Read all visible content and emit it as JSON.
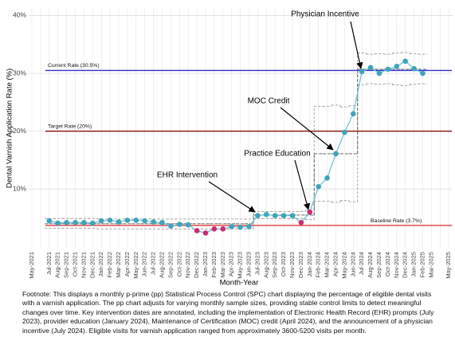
{
  "chart_data": {
    "type": "line",
    "y_axis_label": "Dental Varnish Application Rate (%)",
    "x_axis_label": "Month-Year",
    "categories": [
      "May-2021",
      null,
      "Jul-2021",
      "Aug-2021",
      "Sep-2021",
      "Oct-2021",
      "Nov-2021",
      "Dec-2021",
      "Jan-2022",
      "Feb-2022",
      "Mar-2022",
      "Apr-2022",
      "May-2022",
      "Jun-2022",
      "Jul-2022",
      "Aug-2022",
      "Sep-2022",
      "Oct-2022",
      "Nov-2022",
      "Dec-2022",
      "Jan-2023",
      "Feb-2023",
      "Mar-2023",
      "Apr-2023",
      "May-2023",
      "Jun-2023",
      "Jul-2023",
      "Aug-2023",
      "Sep-2023",
      "Oct-2023",
      "Nov-2023",
      "Dec-2023",
      "Jan-2024",
      "Feb-2024",
      "Mar-2024",
      "Apr-2024",
      "May-2024",
      "Jun-2024",
      "Jul-2024",
      "Aug-2024",
      "Sep-2024",
      "Oct-2024",
      "Nov-2024",
      "Dec-2024",
      "Jan-2025",
      "Feb-2025",
      "Mar-2025",
      null,
      "May-2025"
    ],
    "series": [
      {
        "color": "#3fa3bb",
        "line_color": "#6cc3d3",
        "point_colors": [
          null,
          null,
          "#3fa3bb",
          "#3fa3bb",
          "#3fa3bb",
          "#3fa3bb",
          "#3fa3bb",
          "#3fa3bb",
          "#3fa3bb",
          "#3fa3bb",
          "#3fa3bb",
          "#3fa3bb",
          "#3fa3bb",
          "#3fa3bb",
          "#3fa3bb",
          "#3fa3bb",
          "#3fa3bb",
          "#3fa3bb",
          "#3fa3bb",
          "#cc2b73",
          "#cc2b73",
          "#cc2b73",
          "#cc2b73",
          "#3fa3bb",
          "#3fa3bb",
          "#3fa3bb",
          "#3fa3bb",
          "#3fa3bb",
          "#3fa3bb",
          "#3fa3bb",
          "#3fa3bb",
          "#cc2b73",
          "#cc2b73",
          "#3fa3bb",
          "#3fa3bb",
          "#3fa3bb",
          "#3fa3bb",
          "#3fa3bb",
          "#3fa3bb",
          "#3fa3bb",
          "#3fa3bb",
          "#3fa3bb",
          "#3fa3bb",
          "#3fa3bb",
          "#3fa3bb",
          "#3fa3bb",
          null,
          null,
          null
        ],
        "values": [
          null,
          null,
          4.5,
          4.1,
          4.2,
          4.2,
          4.2,
          4.1,
          4.5,
          4.6,
          4.3,
          4.6,
          4.6,
          4.5,
          4.3,
          4.2,
          3.6,
          3.9,
          3.8,
          2.8,
          2.4,
          3.1,
          3.1,
          3.5,
          3.4,
          3.5,
          5.4,
          5.6,
          5.4,
          5.4,
          5.4,
          4.2,
          6.0,
          10.4,
          11.9,
          16.1,
          19.8,
          23.0,
          30.3,
          31.0,
          30.0,
          30.7,
          31.2,
          32.1,
          30.8,
          30.0,
          null,
          null,
          null
        ],
        "ucl": [
          null,
          null,
          4.9,
          4.9,
          4.9,
          4.9,
          4.9,
          4.9,
          4.8,
          4.8,
          4.8,
          4.8,
          4.8,
          4.8,
          4.8,
          4.8,
          4.8,
          4.8,
          4.8,
          4.8,
          4.8,
          4.8,
          4.8,
          4.8,
          4.8,
          4.8,
          6.1,
          6.1,
          6.1,
          6.1,
          6.1,
          6.1,
          6.3,
          24.3,
          24.3,
          24.5,
          24.2,
          24.4,
          33.5,
          33.3,
          33.4,
          33.3,
          33.5,
          33.6,
          33.4,
          33.3,
          null,
          null,
          null
        ],
        "lcl": [
          null,
          null,
          3.2,
          3.2,
          3.2,
          3.2,
          3.2,
          3.2,
          3.1,
          3.1,
          3.1,
          3.1,
          3.1,
          3.1,
          3.1,
          3.1,
          3.1,
          3.1,
          3.1,
          3.1,
          3.1,
          3.1,
          3.1,
          3.1,
          3.1,
          3.1,
          4.9,
          4.9,
          4.9,
          4.9,
          4.9,
          4.9,
          4.7,
          7.9,
          7.9,
          7.7,
          8.0,
          7.8,
          28.0,
          28.2,
          28.1,
          28.2,
          28.0,
          27.9,
          28.1,
          28.2,
          null,
          null,
          null
        ],
        "center": [
          null,
          null,
          4.0,
          4.0,
          4.0,
          4.0,
          4.0,
          4.0,
          4.0,
          4.0,
          4.0,
          4.0,
          4.0,
          4.0,
          4.0,
          4.0,
          4.0,
          4.0,
          4.0,
          4.0,
          4.0,
          4.0,
          4.0,
          4.0,
          4.0,
          4.0,
          5.5,
          5.5,
          5.5,
          5.5,
          5.5,
          5.5,
          5.5,
          16.1,
          16.1,
          16.1,
          16.1,
          16.1,
          30.7,
          30.7,
          30.7,
          30.7,
          30.7,
          30.7,
          30.7,
          30.7,
          null,
          null,
          null
        ]
      }
    ],
    "ylim": [
      -0.3,
      41.3
    ],
    "yticks": [
      {
        "value": 10,
        "label": "10%"
      },
      {
        "value": 20,
        "label": "20%"
      },
      {
        "value": 30,
        "label": "30%"
      },
      {
        "value": 40,
        "label": "40%"
      }
    ],
    "grid": true,
    "reference_lines": [
      {
        "label": "Current Rate (30.5%)",
        "value": 30.5,
        "color": "#2f2fd0",
        "label_position": "left"
      },
      {
        "label": "Target Rate (20%)",
        "value": 20,
        "color": "#8e1b1b",
        "label_position": "left"
      },
      {
        "label": "Baseline Rate (3.7%)",
        "value": 3.7,
        "color": "#e23a3a",
        "label_position": "right"
      }
    ],
    "annotations": [
      "Physician Incentive",
      "MOC Credit",
      "Practice Education",
      "EHR Intervention"
    ],
    "footnote": "Footnote: This displays a monthly p-prime (pp) Statistical Process Control (SPC) chart displaying the percentage of eligible dental visits with a varnish application. The pp chart adjusts for varying monthly sample sizes, providing stable control limits to detect meaningful changes over time. Key intervention dates are annotated, including the implementation of Electronic Health Record (EHR) prompts (July 2023), provider education (January 2024), Maintenance of Certification (MOC) credit (April 2024), and the announcement of a physician incentive (July 2024). Eligible visits for varnish application ranged from approximately 3600-5200 visits per month."
  }
}
